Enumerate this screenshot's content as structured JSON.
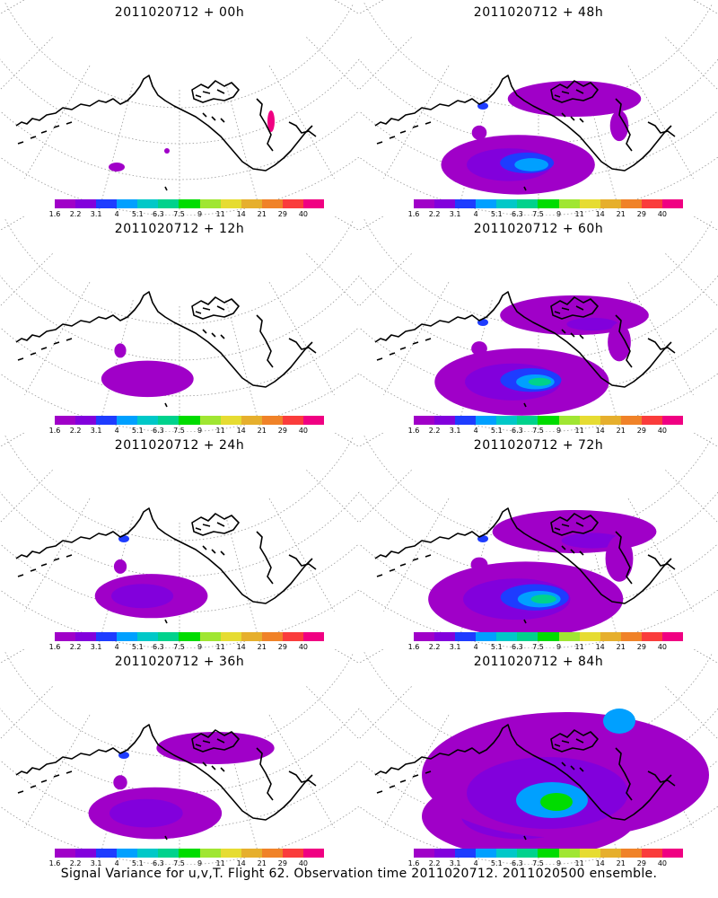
{
  "panels": [
    {
      "title": "2011020712 + 00h",
      "lead": 0
    },
    {
      "title": "2011020712 + 48h",
      "lead": 48
    },
    {
      "title": "2011020712 + 12h",
      "lead": 12
    },
    {
      "title": "2011020712 + 60h",
      "lead": 60
    },
    {
      "title": "2011020712 + 24h",
      "lead": 24
    },
    {
      "title": "2011020712 + 72h",
      "lead": 72
    },
    {
      "title": "2011020712 + 36h",
      "lead": 36
    },
    {
      "title": "2011020712 + 84h",
      "lead": 84
    }
  ],
  "colorbar": {
    "labels": [
      "1.6",
      "2.2",
      "3.1",
      "4",
      "5.1",
      "6.3",
      "7.5",
      "9",
      "11",
      "14",
      "21",
      "29",
      "40"
    ],
    "colors": [
      "#a000c8",
      "#8200dc",
      "#1e3cff",
      "#00a0ff",
      "#00c8c8",
      "#00d28c",
      "#00dc00",
      "#a0e632",
      "#e6dc32",
      "#e6af2d",
      "#f08228",
      "#fa3c3c",
      "#f00082"
    ]
  },
  "caption": "Signal Variance for u,v,T. Flight 62. Observation time 2011020712. 2011020500 ensemble."
}
